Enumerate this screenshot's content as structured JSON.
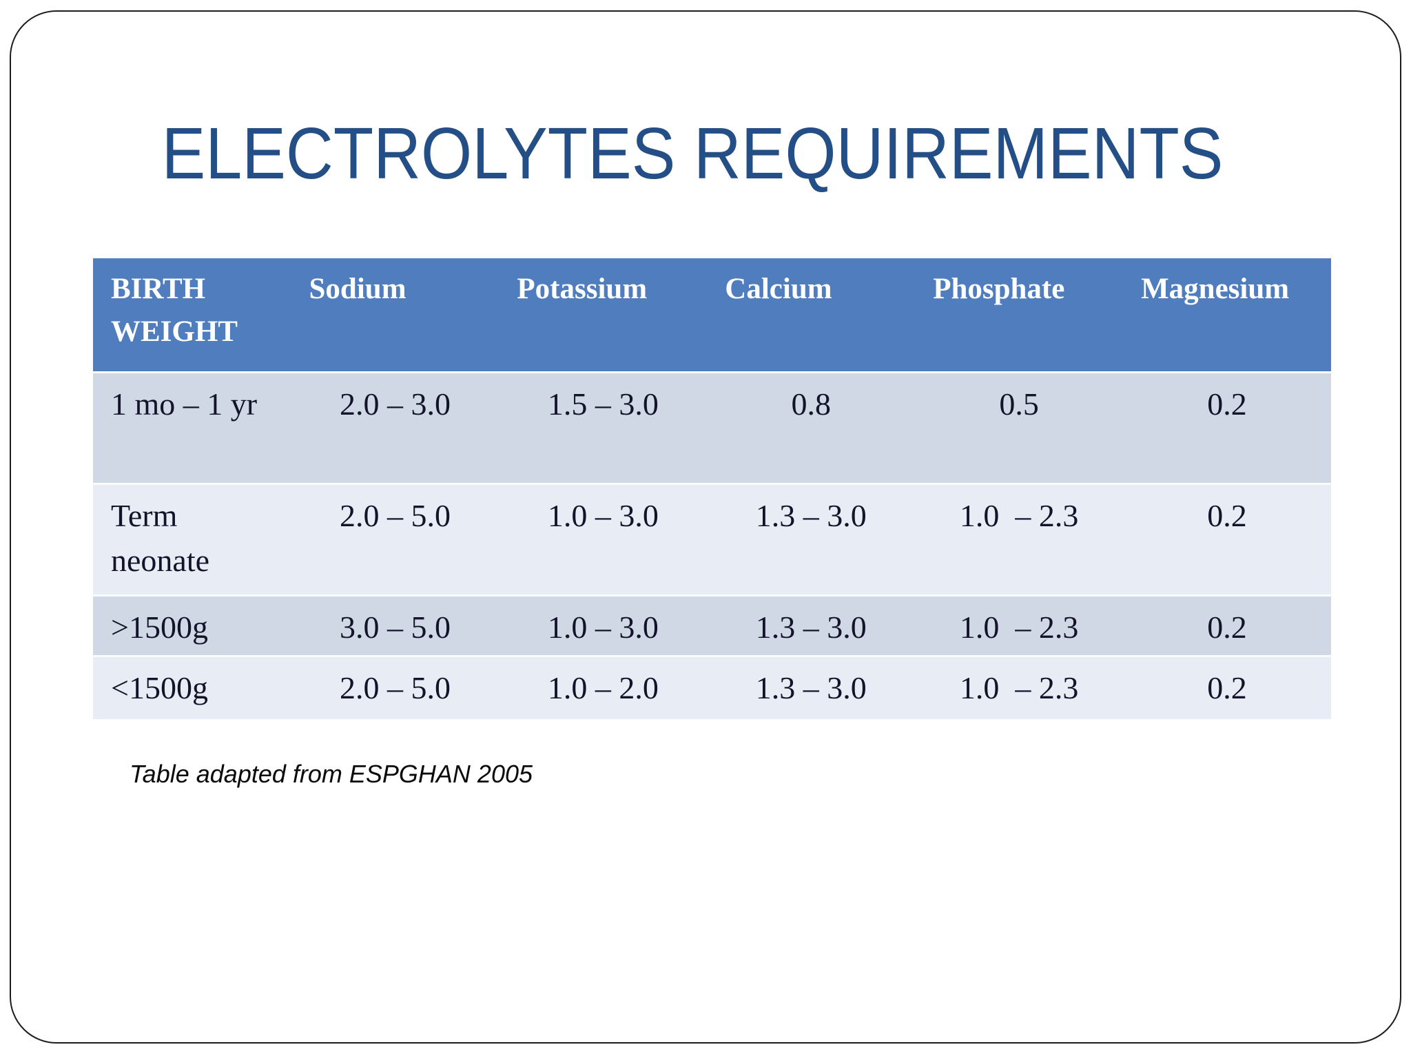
{
  "slide": {
    "title": "ELECTROLYTES REQUIREMENTS",
    "footnote": "Table adapted from ESPGHAN 2005"
  },
  "table": {
    "columns": [
      "BIRTH WEIGHT",
      "Sodium",
      "Potassium",
      "Calcium",
      "Phosphate",
      "Magnesium"
    ],
    "rows": [
      {
        "label": "1 mo – 1 yr",
        "values": [
          "2.0 – 3.0",
          "1.5 – 3.0",
          "0.8",
          "0.5",
          "0.2"
        ]
      },
      {
        "label": "Term\nneonate",
        "values": [
          "2.0 – 5.0",
          "1.0 – 3.0",
          "1.3 – 3.0",
          "1.0  – 2.3",
          "0.2"
        ]
      },
      {
        "label": ">1500g",
        "values": [
          "3.0 – 5.0",
          "1.0 – 3.0",
          "1.3 – 3.0",
          "1.0  – 2.3",
          "0.2"
        ]
      },
      {
        "label": "<1500g",
        "values": [
          "2.0 – 5.0",
          "1.0 – 2.0",
          "1.3 – 3.0",
          "1.0  – 2.3",
          "0.2"
        ]
      }
    ]
  },
  "colors": {
    "title": "#234f86",
    "header_bg": "#4f7dbe",
    "header_text": "#ffffff",
    "row_odd": "#d1d8e5",
    "row_even": "#e8ecf4",
    "row_separator": "#fafbfd",
    "body_text": "#13132a",
    "frame_border": "#1c1c1c",
    "footnote_text": "#0a0a0a"
  }
}
